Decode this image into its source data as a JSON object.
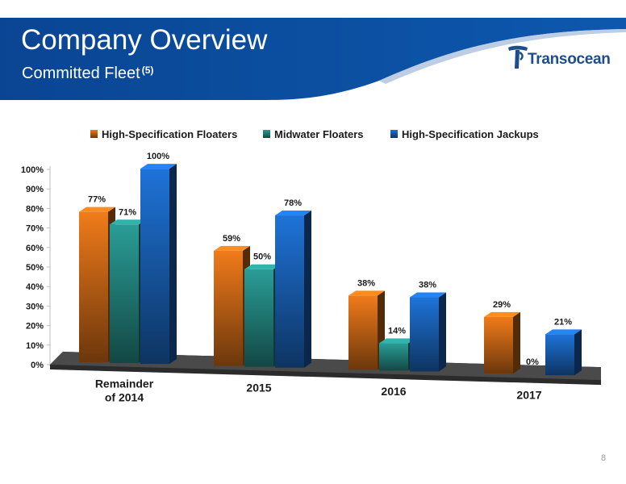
{
  "header": {
    "title": "Company Overview",
    "subtitle": "Committed Fleet",
    "footnote_ref": "(5)",
    "logo_text": "Transocean",
    "colors": {
      "banner": "#0d4a97",
      "banner_light": "#2a6ab8"
    }
  },
  "page_number": "8",
  "chart_data": {
    "type": "bar",
    "style": "3d-clustered",
    "categories": [
      "Remainder of 2014",
      "2015",
      "2016",
      "2017"
    ],
    "series": [
      {
        "name": "High-Specification Floaters",
        "values": [
          77,
          59,
          38,
          29
        ],
        "labels": [
          "77%",
          "59%",
          "38%",
          "29%"
        ],
        "color": "#f07b1a"
      },
      {
        "name": "Midwater Floaters",
        "values": [
          71,
          50,
          14,
          0
        ],
        "labels": [
          "71%",
          "50%",
          "14%",
          "0%"
        ],
        "color": "#2a9d96"
      },
      {
        "name": "High-Specification Jackups",
        "values": [
          100,
          78,
          38,
          21
        ],
        "labels": [
          "100%",
          "78%",
          "38%",
          "21%"
        ],
        "color": "#1e73d8"
      }
    ],
    "ylim": [
      0,
      100
    ],
    "yticks": [
      "0%",
      "10%",
      "20%",
      "30%",
      "40%",
      "50%",
      "60%",
      "70%",
      "80%",
      "90%",
      "100%"
    ],
    "legend_position": "top",
    "grid": false
  }
}
